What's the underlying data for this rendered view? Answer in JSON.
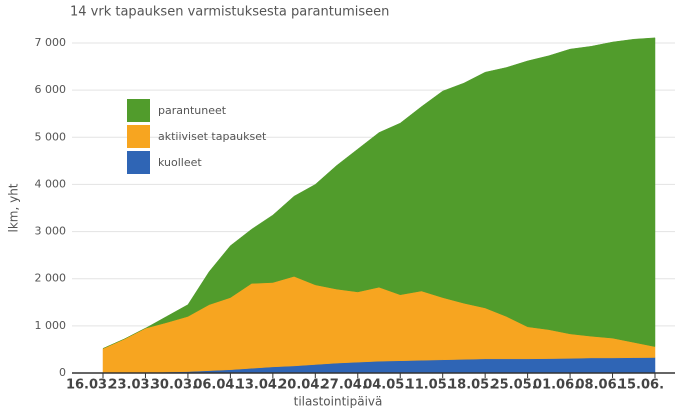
{
  "chart_data": {
    "type": "stacked_area",
    "title": "14 vrk tapauksen varmistuksesta parantumiseen",
    "xlabel": "tilastointipäivä",
    "ylabel": "lkm, yht",
    "categories": [
      "16.03.",
      null,
      "23.03.",
      null,
      "30.03.",
      null,
      "06.04.",
      null,
      "13.04.",
      null,
      "20.04.",
      null,
      "27.04.",
      null,
      "04.05.",
      null,
      "11.05.",
      null,
      "18.05.",
      null,
      "25.05.",
      null,
      "01.06.",
      null,
      "08.06.",
      null,
      "15.06."
    ],
    "series": [
      {
        "name": "kuolleet",
        "color": "#2f65b5",
        "values": [
          0,
          5,
          10,
          20,
          30,
          50,
          70,
          100,
          130,
          150,
          180,
          210,
          230,
          250,
          260,
          270,
          280,
          290,
          300,
          300,
          300,
          305,
          310,
          320,
          320,
          325,
          328
        ]
      },
      {
        "name": "aktiiviset tapaukset",
        "color": "#f7a520",
        "values": [
          520,
          715,
          940,
          1050,
          1170,
          1400,
          1530,
          1800,
          1790,
          1900,
          1690,
          1570,
          1490,
          1570,
          1400,
          1470,
          1320,
          1190,
          1080,
          900,
          680,
          615,
          520,
          460,
          420,
          325,
          232
        ]
      },
      {
        "name": "parantuneet",
        "color": "#519c2c",
        "values": [
          0,
          0,
          0,
          130,
          250,
          700,
          1100,
          1150,
          1430,
          1700,
          2130,
          2620,
          3030,
          3280,
          3640,
          3910,
          4380,
          4670,
          5000,
          5280,
          5640,
          5810,
          6040,
          6150,
          6280,
          6430,
          6550
        ]
      }
    ],
    "ylim": [
      0,
      7000
    ],
    "yticks": [
      0,
      {
        "value": 1000,
        "label": "1 000"
      },
      {
        "value": 2000,
        "label": "2 000"
      },
      {
        "value": 3000,
        "label": "3 000"
      },
      {
        "value": 4000,
        "label": "4 000"
      },
      {
        "value": 5000,
        "label": "5 000"
      },
      {
        "value": 6000,
        "label": "6 000"
      },
      {
        "value": 7000,
        "label": "7 000"
      }
    ],
    "grid": true
  }
}
